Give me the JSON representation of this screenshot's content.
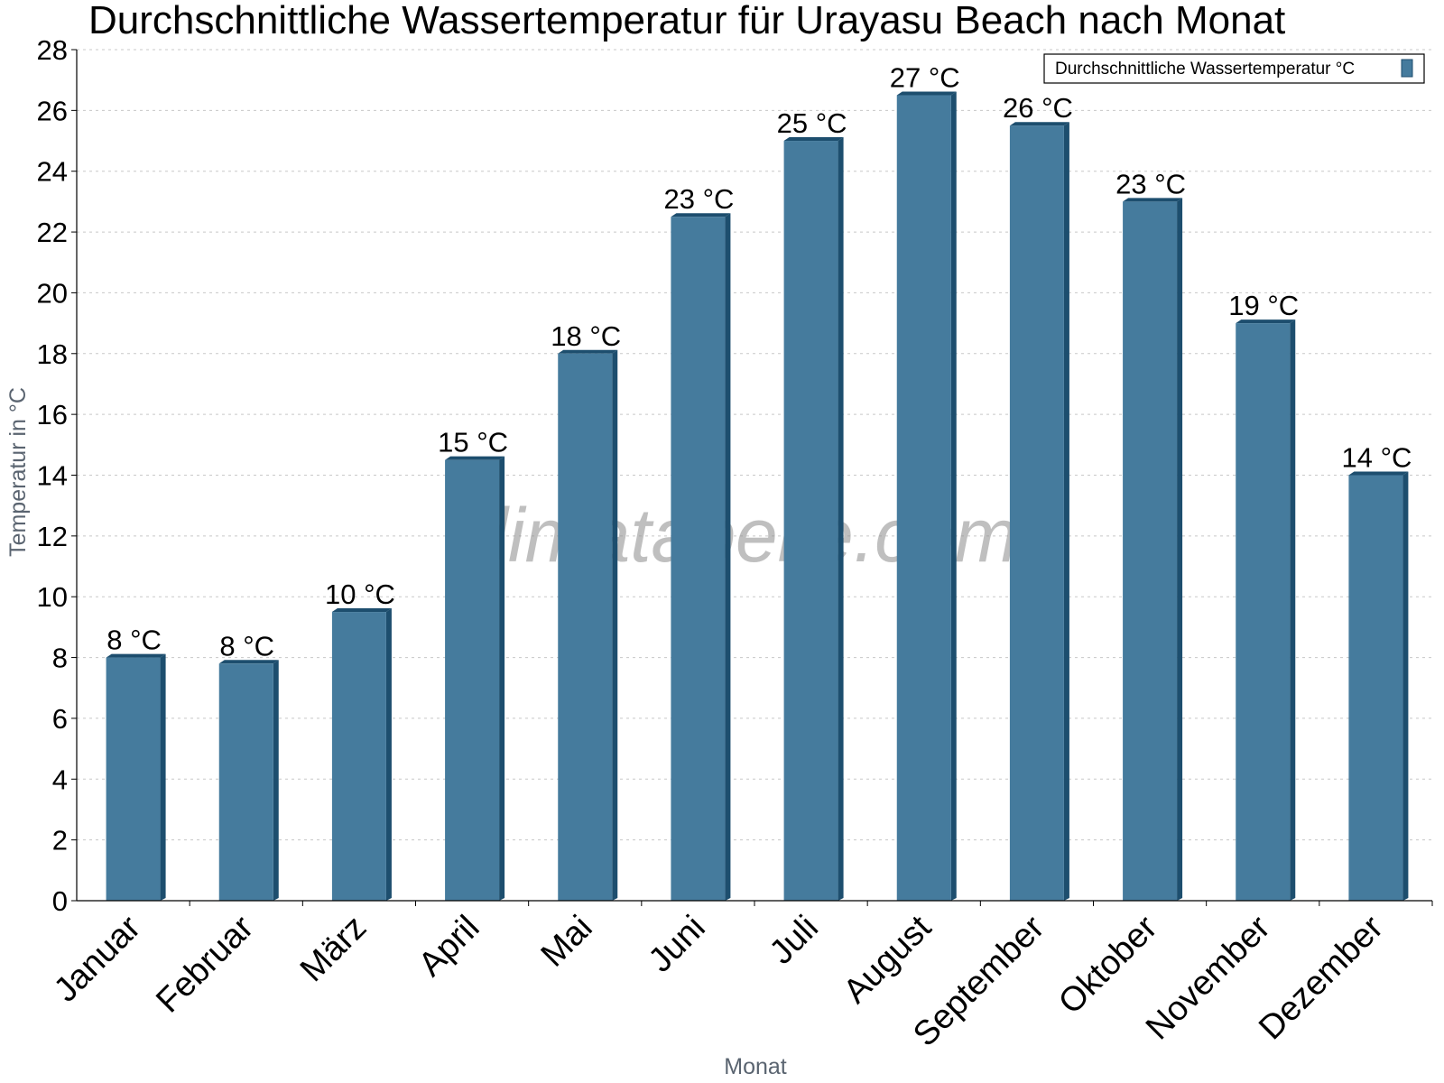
{
  "chart_data": {
    "type": "bar",
    "title": "Durchschnittliche Wassertemperatur für Urayasu Beach nach Monat",
    "xlabel": "Monat",
    "ylabel": "Temperatur in °C",
    "ylim": [
      0,
      28
    ],
    "yticks": [
      "0",
      "2",
      "4",
      "6",
      "8",
      "10",
      "12",
      "14",
      "16",
      "18",
      "20",
      "22",
      "24",
      "26",
      "28"
    ],
    "grid": true,
    "legend_position": "top-right",
    "categories": [
      "Januar",
      "Februar",
      "März",
      "April",
      "Mai",
      "Juni",
      "Juli",
      "August",
      "September",
      "Oktober",
      "November",
      "Dezember"
    ],
    "series": [
      {
        "name": "Durchschnittliche Wassertemperatur °C",
        "values": [
          8.0,
          7.8,
          9.5,
          14.5,
          18.0,
          22.5,
          25.0,
          26.5,
          25.5,
          23.0,
          19.0,
          14.0
        ],
        "labels": [
          "8 °C",
          "8 °C",
          "10 °C",
          "15 °C",
          "18 °C",
          "23 °C",
          "25 °C",
          "27 °C",
          "26 °C",
          "23 °C",
          "19 °C",
          "14 °C"
        ],
        "color": "#457b9d",
        "edge_color": "#1d4e6e"
      }
    ],
    "watermark": "klimatabelle.com"
  }
}
